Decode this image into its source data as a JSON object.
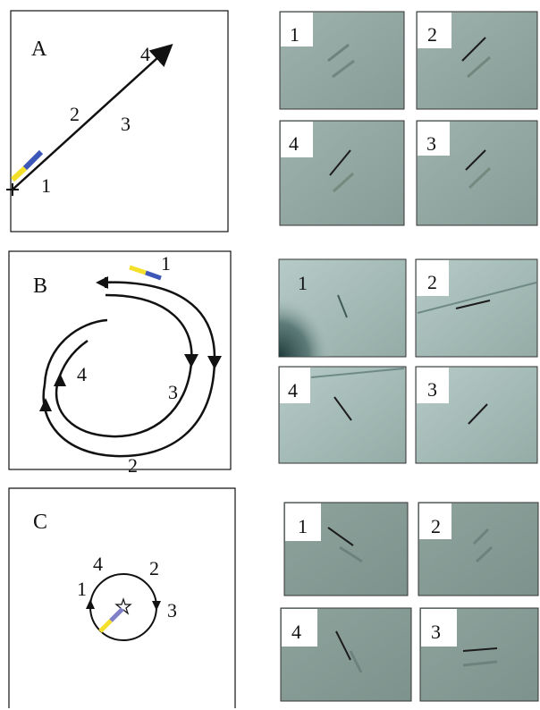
{
  "panels": [
    {
      "label": "A",
      "diagram_labels": [
        "1",
        "2",
        "3",
        "4"
      ],
      "photo_labels": [
        "1",
        "2",
        "4",
        "3"
      ]
    },
    {
      "label": "B",
      "diagram_labels": [
        "1",
        "2",
        "3",
        "4"
      ],
      "photo_labels": [
        "1",
        "2",
        "4",
        "3"
      ]
    },
    {
      "label": "C",
      "diagram_labels": [
        "1",
        "2",
        "3",
        "4"
      ],
      "photo_labels": [
        "1",
        "2",
        "4",
        "3"
      ]
    }
  ],
  "colors": {
    "line": "#111111",
    "yellow_marker": "#f4e02a",
    "blue_marker": "#3d57b8",
    "photo_bg": "#8fa59f",
    "photo_bg_light": "#a9c0bc"
  }
}
